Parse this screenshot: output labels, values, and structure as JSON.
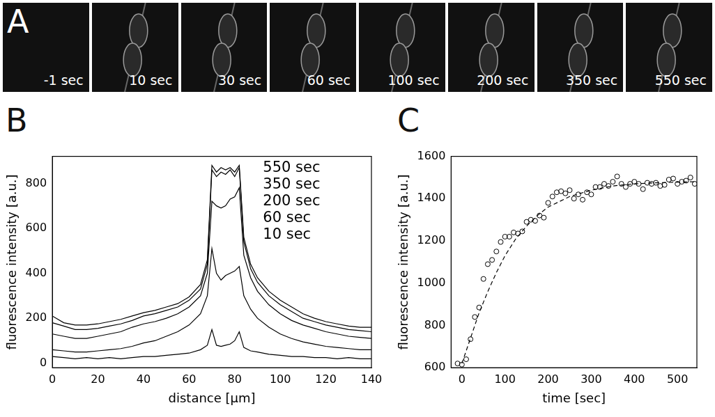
{
  "image_strip": {
    "panel": "A",
    "frames": [
      "-1 sec",
      "10 sec",
      "30 sec",
      "60 sec",
      "100 sec",
      "200 sec",
      "350 sec",
      "550 sec"
    ]
  },
  "chart_data": [
    {
      "type": "line",
      "panel": "B",
      "x_label": "distance [µm]",
      "y_label": "fluorescence intensity [a.u.]",
      "x": [
        0,
        5,
        10,
        15,
        20,
        25,
        30,
        35,
        40,
        45,
        50,
        55,
        60,
        65,
        68,
        70,
        72,
        74,
        76,
        78,
        80,
        82,
        84,
        87,
        90,
        95,
        100,
        105,
        110,
        115,
        120,
        125,
        130,
        135,
        140
      ],
      "series": [
        {
          "name": "550 sec",
          "color": "#000000",
          "values": [
            210,
            180,
            170,
            170,
            175,
            185,
            195,
            210,
            225,
            235,
            250,
            265,
            295,
            350,
            460,
            880,
            850,
            870,
            860,
            870,
            850,
            880,
            560,
            440,
            380,
            320,
            280,
            250,
            220,
            200,
            185,
            175,
            165,
            160,
            160
          ]
        },
        {
          "name": "350 sec",
          "color": "#000000",
          "values": [
            180,
            165,
            150,
            150,
            155,
            165,
            175,
            190,
            210,
            220,
            235,
            250,
            280,
            330,
            440,
            860,
            830,
            850,
            840,
            860,
            830,
            870,
            540,
            420,
            360,
            300,
            260,
            230,
            200,
            185,
            170,
            160,
            150,
            145,
            140
          ]
        },
        {
          "name": "200 sec",
          "color": "#000000",
          "values": [
            130,
            120,
            110,
            110,
            120,
            130,
            140,
            160,
            175,
            185,
            200,
            220,
            250,
            300,
            400,
            720,
            700,
            690,
            700,
            730,
            740,
            780,
            480,
            380,
            320,
            260,
            220,
            190,
            170,
            155,
            140,
            130,
            120,
            115,
            110
          ]
        },
        {
          "name": "60 sec",
          "color": "#000000",
          "values": [
            60,
            55,
            50,
            50,
            55,
            60,
            65,
            75,
            90,
            100,
            120,
            140,
            170,
            220,
            300,
            510,
            400,
            370,
            390,
            400,
            410,
            430,
            300,
            240,
            200,
            160,
            130,
            110,
            95,
            85,
            75,
            70,
            65,
            60,
            60
          ]
        },
        {
          "name": "10 sec",
          "color": "#000000",
          "values": [
            30,
            25,
            20,
            25,
            20,
            25,
            20,
            25,
            30,
            30,
            35,
            40,
            45,
            60,
            80,
            150,
            80,
            75,
            80,
            85,
            100,
            140,
            70,
            55,
            50,
            40,
            35,
            30,
            30,
            25,
            25,
            20,
            25,
            20,
            20
          ]
        }
      ],
      "xlim": [
        0,
        140
      ],
      "xticks": [
        0,
        20,
        40,
        60,
        80,
        100,
        120,
        140
      ],
      "ylim": [
        -20,
        920
      ],
      "yticks": [
        0,
        200,
        400,
        600,
        800
      ],
      "grid": false,
      "legend": "upper right"
    },
    {
      "type": "scatter",
      "panel": "C",
      "x_label": "time [sec]",
      "y_label": "fluorescence intensity [a.u.]",
      "series": [
        {
          "type": "scatter",
          "color": "#000000",
          "marker": "circle",
          "x": [
            -10,
            0,
            10,
            20,
            30,
            40,
            50,
            60,
            70,
            80,
            90,
            100,
            110,
            120,
            130,
            140,
            150,
            160,
            170,
            180,
            190,
            200,
            210,
            220,
            230,
            240,
            250,
            260,
            270,
            280,
            290,
            300,
            310,
            320,
            330,
            340,
            350,
            360,
            370,
            380,
            390,
            400,
            410,
            420,
            430,
            440,
            450,
            460,
            470,
            480,
            490,
            500,
            510,
            520,
            530,
            540
          ],
          "values": [
            620,
            615,
            640,
            735,
            840,
            885,
            1020,
            1090,
            1110,
            1150,
            1195,
            1220,
            1220,
            1240,
            1235,
            1245,
            1290,
            1300,
            1295,
            1320,
            1310,
            1380,
            1410,
            1430,
            1435,
            1425,
            1440,
            1400,
            1420,
            1395,
            1430,
            1420,
            1455,
            1455,
            1470,
            1460,
            1480,
            1505,
            1470,
            1455,
            1470,
            1480,
            1470,
            1445,
            1475,
            1470,
            1475,
            1460,
            1465,
            1490,
            1495,
            1470,
            1480,
            1485,
            1500,
            1470
          ]
        },
        {
          "type": "line",
          "color": "#000000",
          "line_style": "dashed",
          "x": [
            0,
            10,
            20,
            30,
            40,
            60,
            80,
            100,
            125,
            150,
            175,
            200,
            250,
            300,
            350,
            400,
            450,
            500,
            540
          ],
          "values": [
            620,
            680,
            740,
            800,
            860,
            960,
            1050,
            1130,
            1210,
            1270,
            1320,
            1360,
            1410,
            1440,
            1460,
            1470,
            1475,
            1478,
            1480
          ]
        }
      ],
      "xlim": [
        -25,
        545
      ],
      "xticks": [
        0,
        100,
        200,
        300,
        400,
        500
      ],
      "ylim": [
        600,
        1600
      ],
      "yticks": [
        600,
        800,
        1000,
        1200,
        1400,
        1600
      ],
      "grid": false
    }
  ]
}
